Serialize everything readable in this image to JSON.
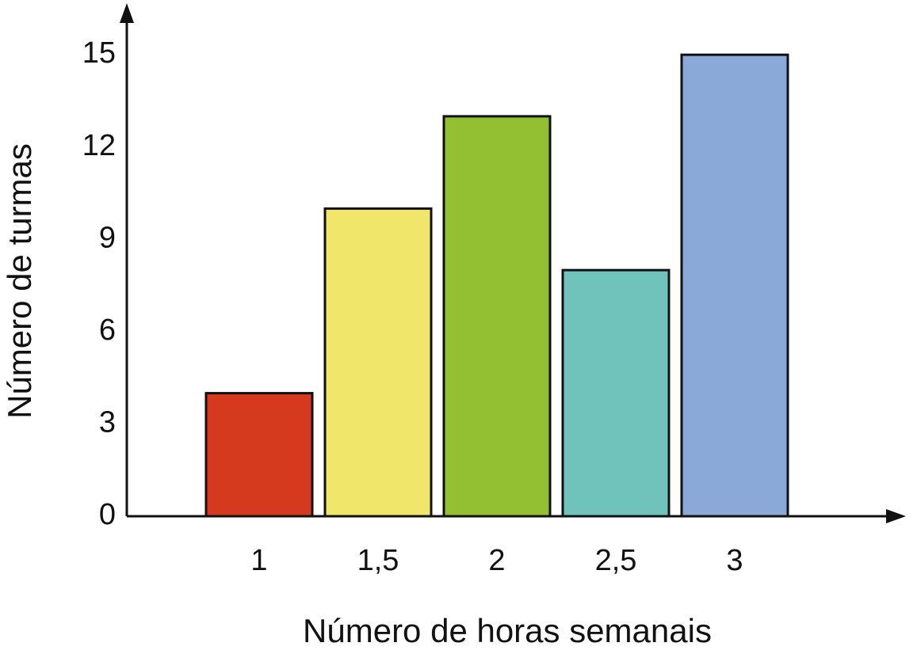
{
  "chart_data": {
    "type": "bar",
    "x_label": "Número de horas semanais",
    "y_label": "Número de turmas",
    "categories": [
      "1",
      "1,5",
      "2",
      "2,5",
      "3"
    ],
    "values": [
      4,
      10,
      13,
      8,
      15
    ],
    "colors": [
      "#d63a1e",
      "#f0e66a",
      "#93c032",
      "#6fc3bb",
      "#8aa9d9"
    ],
    "ylim": [
      0,
      16.6
    ],
    "yticks": [
      0,
      3,
      6,
      9,
      12,
      15
    ],
    "grid": false
  }
}
